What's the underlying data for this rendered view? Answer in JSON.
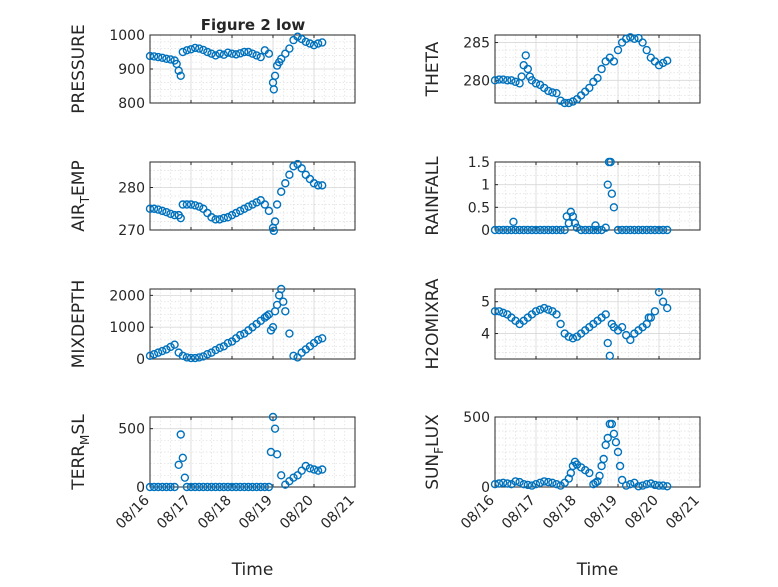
{
  "figure_title": "Figure 2 low",
  "colors": {
    "marker": "#0072bd",
    "axis": "#262626",
    "background": "#ffffff"
  },
  "chart_data": [
    {
      "type": "scatter",
      "ylabel": "PRESSURE",
      "ylim": [
        800,
        1000
      ],
      "yticks": [
        "800",
        "900",
        "1000"
      ],
      "xlim": [
        0,
        5
      ],
      "x_axis": "dates 08/16 – 08/21",
      "grid": "major+minor",
      "x": [
        0.0,
        0.1,
        0.2,
        0.3,
        0.4,
        0.5,
        0.6,
        0.65,
        0.7,
        0.75,
        0.8,
        0.9,
        1.0,
        1.1,
        1.2,
        1.3,
        1.4,
        1.5,
        1.6,
        1.7,
        1.8,
        1.9,
        2.0,
        2.1,
        2.2,
        2.3,
        2.4,
        2.5,
        2.6,
        2.7,
        2.8,
        2.9,
        3.0,
        3.02,
        3.05,
        3.1,
        3.15,
        3.2,
        3.3,
        3.4,
        3.5,
        3.6,
        3.7,
        3.8,
        3.9,
        4.0,
        4.1,
        4.2
      ],
      "y": [
        938,
        937,
        935,
        933,
        930,
        928,
        925,
        915,
        895,
        880,
        950,
        955,
        958,
        962,
        960,
        956,
        950,
        945,
        940,
        945,
        942,
        948,
        945,
        943,
        946,
        950,
        950,
        945,
        940,
        935,
        955,
        945,
        860,
        840,
        880,
        910,
        920,
        930,
        945,
        960,
        985,
        995,
        988,
        980,
        975,
        970,
        975,
        978
      ]
    },
    {
      "type": "scatter",
      "ylabel": "THETA",
      "ylim": [
        277,
        286
      ],
      "yticks": [
        "280",
        "285"
      ],
      "xlim": [
        0,
        5
      ],
      "grid": "major+minor",
      "x": [
        0.0,
        0.1,
        0.2,
        0.3,
        0.4,
        0.5,
        0.6,
        0.65,
        0.7,
        0.75,
        0.8,
        0.85,
        0.9,
        1.0,
        1.1,
        1.2,
        1.3,
        1.4,
        1.5,
        1.6,
        1.7,
        1.8,
        1.9,
        2.0,
        2.1,
        2.2,
        2.3,
        2.4,
        2.5,
        2.6,
        2.7,
        2.8,
        2.9,
        3.0,
        3.1,
        3.2,
        3.3,
        3.4,
        3.5,
        3.6,
        3.7,
        3.8,
        3.9,
        4.0,
        4.1,
        4.2
      ],
      "y": [
        280,
        280.1,
        280.1,
        280,
        280,
        279.8,
        279.6,
        280.5,
        282,
        283.3,
        281.5,
        280.5,
        280,
        279.6,
        279.4,
        279,
        278.6,
        278.4,
        278.3,
        277.3,
        277,
        277,
        277.2,
        277.5,
        278,
        278.5,
        279,
        279.8,
        280.3,
        281.5,
        282.5,
        283,
        282.5,
        284,
        285,
        285.5,
        285.7,
        285.5,
        285.6,
        285,
        284,
        283,
        282.5,
        282,
        282.3,
        282.6
      ]
    },
    {
      "type": "scatter",
      "ylabel": "AIR",
      "ylabel_sub": "T",
      "ylabel_suffix": "EMP",
      "ylim": [
        270,
        286
      ],
      "yticks": [
        "270",
        "280"
      ],
      "xlim": [
        0,
        5
      ],
      "grid": "major+minor",
      "x": [
        0.0,
        0.1,
        0.2,
        0.3,
        0.4,
        0.5,
        0.6,
        0.7,
        0.75,
        0.8,
        0.9,
        1.0,
        1.1,
        1.2,
        1.3,
        1.4,
        1.5,
        1.6,
        1.7,
        1.8,
        1.9,
        2.0,
        2.1,
        2.2,
        2.3,
        2.4,
        2.5,
        2.6,
        2.7,
        2.8,
        2.9,
        3.0,
        3.02,
        3.05,
        3.1,
        3.2,
        3.3,
        3.4,
        3.5,
        3.6,
        3.7,
        3.8,
        3.9,
        4.0,
        4.1,
        4.2
      ],
      "y": [
        275,
        275,
        274.8,
        274.5,
        274.2,
        273.8,
        273.5,
        273.5,
        272.8,
        276,
        276,
        276,
        275.8,
        275.5,
        275,
        274,
        273,
        272.5,
        272.5,
        272.8,
        273,
        273.5,
        274,
        274.5,
        275,
        275.5,
        276,
        276.5,
        277,
        276,
        274.5,
        270.5,
        269.8,
        272,
        276,
        279,
        281,
        283,
        285,
        285.5,
        284.5,
        283,
        282,
        281,
        280.5,
        280.5
      ]
    },
    {
      "type": "scatter",
      "ylabel": "RAINFALL",
      "ylim": [
        0,
        1.5
      ],
      "yticks": [
        "0",
        "0.5",
        "1",
        "1.5"
      ],
      "xlim": [
        0,
        5
      ],
      "grid": "major+minor",
      "x": [
        0.0,
        0.1,
        0.2,
        0.3,
        0.4,
        0.45,
        0.5,
        0.6,
        0.7,
        0.8,
        0.9,
        1.0,
        1.1,
        1.2,
        1.3,
        1.4,
        1.5,
        1.6,
        1.7,
        1.75,
        1.8,
        1.85,
        1.9,
        1.95,
        2.0,
        2.1,
        2.2,
        2.3,
        2.4,
        2.45,
        2.5,
        2.6,
        2.7,
        2.75,
        2.78,
        2.82,
        2.85,
        2.9,
        3.0,
        3.1,
        3.2,
        3.3,
        3.4,
        3.5,
        3.6,
        3.7,
        3.8,
        3.9,
        4.0,
        4.1,
        4.2
      ],
      "y": [
        0,
        0,
        0,
        0,
        0,
        0.18,
        0,
        0,
        0,
        0,
        0,
        0,
        0,
        0,
        0,
        0,
        0,
        0,
        0,
        0.3,
        0.15,
        0.4,
        0.3,
        0.15,
        0.05,
        0,
        0,
        0,
        0,
        0.1,
        0,
        0,
        0.05,
        1.0,
        1.5,
        1.5,
        0.8,
        0.5,
        0,
        0,
        0,
        0,
        0,
        0,
        0,
        0,
        0,
        0,
        0,
        0,
        0
      ]
    },
    {
      "type": "scatter",
      "ylabel": "MIXDEPTH",
      "ylim": [
        0,
        2200
      ],
      "yticks": [
        "0",
        "1000",
        "2000"
      ],
      "xlim": [
        0,
        5
      ],
      "grid": "major+minor",
      "x": [
        0.0,
        0.1,
        0.2,
        0.3,
        0.4,
        0.5,
        0.6,
        0.7,
        0.8,
        0.9,
        1.0,
        1.1,
        1.2,
        1.3,
        1.4,
        1.5,
        1.6,
        1.7,
        1.8,
        1.9,
        2.0,
        2.1,
        2.2,
        2.3,
        2.4,
        2.5,
        2.6,
        2.7,
        2.8,
        2.85,
        2.9,
        2.95,
        3.0,
        3.05,
        3.1,
        3.15,
        3.2,
        3.25,
        3.3,
        3.4,
        3.5,
        3.6,
        3.7,
        3.8,
        3.9,
        4.0,
        4.1,
        4.2
      ],
      "y": [
        100,
        150,
        200,
        250,
        300,
        380,
        450,
        200,
        100,
        50,
        30,
        30,
        50,
        80,
        150,
        200,
        280,
        350,
        400,
        500,
        550,
        650,
        750,
        800,
        900,
        1000,
        1100,
        1200,
        1300,
        1350,
        1400,
        900,
        1000,
        1500,
        1700,
        2000,
        2200,
        1800,
        1500,
        800,
        100,
        50,
        200,
        300,
        400,
        500,
        600,
        650
      ]
    },
    {
      "type": "scatter",
      "ylabel": "H2OMIXRA",
      "ylim": [
        3.2,
        5.4
      ],
      "yticks": [
        "4",
        "5"
      ],
      "xlim": [
        0,
        5
      ],
      "grid": "major+minor",
      "x": [
        0.0,
        0.1,
        0.2,
        0.3,
        0.4,
        0.5,
        0.6,
        0.7,
        0.8,
        0.9,
        1.0,
        1.1,
        1.2,
        1.3,
        1.4,
        1.5,
        1.6,
        1.7,
        1.8,
        1.9,
        2.0,
        2.1,
        2.2,
        2.3,
        2.4,
        2.5,
        2.6,
        2.7,
        2.75,
        2.8,
        2.85,
        2.9,
        3.0,
        3.1,
        3.2,
        3.3,
        3.4,
        3.5,
        3.6,
        3.7,
        3.75,
        3.8,
        3.9,
        4.0,
        4.1,
        4.2
      ],
      "y": [
        4.7,
        4.7,
        4.65,
        4.6,
        4.5,
        4.4,
        4.3,
        4.4,
        4.5,
        4.6,
        4.7,
        4.75,
        4.8,
        4.75,
        4.7,
        4.6,
        4.3,
        4.0,
        3.9,
        3.85,
        3.9,
        4.0,
        4.1,
        4.2,
        4.3,
        4.4,
        4.5,
        4.6,
        3.7,
        3.3,
        4.3,
        4.2,
        4.1,
        4.2,
        3.95,
        3.8,
        4.0,
        4.1,
        4.2,
        4.3,
        4.5,
        4.5,
        4.7,
        5.3,
        5.0,
        4.8
      ]
    },
    {
      "type": "scatter",
      "ylabel": "TERR",
      "ylabel_sub": "M",
      "ylabel_suffix": "SL",
      "ylim": [
        0,
        600
      ],
      "yticks": [
        "0",
        "500"
      ],
      "xlim": [
        0,
        5
      ],
      "xticks": [
        "08/16",
        "08/17",
        "08/18",
        "08/19",
        "08/20",
        "08/21"
      ],
      "xlabel": "Time",
      "grid": "major+minor",
      "x": [
        0.0,
        0.1,
        0.2,
        0.3,
        0.4,
        0.5,
        0.6,
        0.7,
        0.75,
        0.8,
        0.85,
        0.9,
        1.0,
        1.1,
        1.2,
        1.3,
        1.4,
        1.5,
        1.6,
        1.7,
        1.8,
        1.9,
        2.0,
        2.1,
        2.2,
        2.3,
        2.4,
        2.5,
        2.6,
        2.7,
        2.8,
        2.9,
        2.95,
        3.0,
        3.05,
        3.1,
        3.2,
        3.3,
        3.4,
        3.5,
        3.6,
        3.7,
        3.8,
        3.9,
        4.0,
        4.1,
        4.2
      ],
      "y": [
        0,
        0,
        0,
        0,
        0,
        0,
        0,
        190,
        450,
        250,
        80,
        0,
        0,
        0,
        0,
        0,
        0,
        0,
        0,
        0,
        0,
        0,
        0,
        0,
        0,
        0,
        0,
        0,
        0,
        0,
        0,
        0,
        300,
        600,
        500,
        280,
        100,
        20,
        50,
        80,
        100,
        140,
        180,
        160,
        150,
        140,
        150
      ]
    },
    {
      "type": "scatter",
      "ylabel": "SUN",
      "ylabel_sub": "F",
      "ylabel_suffix": "LUX",
      "ylim": [
        0,
        500
      ],
      "yticks": [
        "0",
        "500"
      ],
      "xlim": [
        0,
        5
      ],
      "xticks": [
        "08/16",
        "08/17",
        "08/18",
        "08/19",
        "08/20",
        "08/21"
      ],
      "xlabel": "Time",
      "grid": "major+minor",
      "x": [
        0.0,
        0.1,
        0.2,
        0.3,
        0.4,
        0.5,
        0.6,
        0.7,
        0.8,
        0.9,
        1.0,
        1.1,
        1.2,
        1.3,
        1.4,
        1.5,
        1.6,
        1.7,
        1.8,
        1.85,
        1.9,
        1.95,
        2.0,
        2.1,
        2.2,
        2.3,
        2.4,
        2.45,
        2.5,
        2.55,
        2.6,
        2.65,
        2.7,
        2.75,
        2.8,
        2.85,
        2.9,
        2.95,
        3.0,
        3.05,
        3.1,
        3.2,
        3.3,
        3.4,
        3.5,
        3.6,
        3.7,
        3.8,
        3.9,
        4.0,
        4.1,
        4.2
      ],
      "y": [
        20,
        25,
        30,
        25,
        20,
        40,
        35,
        20,
        15,
        10,
        20,
        30,
        40,
        35,
        30,
        20,
        10,
        30,
        60,
        100,
        150,
        180,
        160,
        140,
        120,
        100,
        20,
        30,
        40,
        80,
        150,
        200,
        300,
        350,
        450,
        450,
        380,
        320,
        250,
        150,
        50,
        10,
        20,
        30,
        5,
        10,
        20,
        25,
        15,
        10,
        10,
        5
      ]
    }
  ]
}
